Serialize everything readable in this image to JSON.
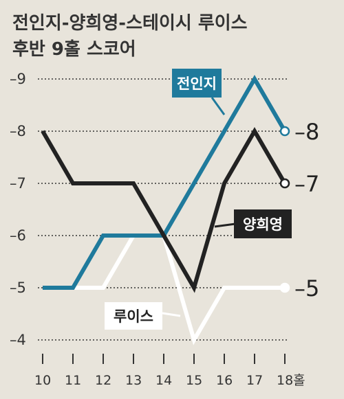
{
  "chart_data": {
    "type": "line",
    "title_lines": [
      "전인지-양희영-스테이시 루이스",
      "후반 9홀 스코어"
    ],
    "x_ticks": [
      "10",
      "11",
      "12",
      "13",
      "14",
      "15",
      "16",
      "17",
      "18홀"
    ],
    "y_ticks": [
      "-9",
      "-8",
      "-7",
      "-6",
      "-5",
      "-4"
    ],
    "ylim": [
      -4,
      -9
    ],
    "grid": "horizontal dotted",
    "series": [
      {
        "name": "전인지",
        "color": "#1f7a9c",
        "label_bg": "#1f7a9c",
        "label_fg": "#ffffff",
        "values": [
          -5,
          -5,
          -6,
          -6,
          -6,
          -7,
          -8,
          -9,
          -8
        ],
        "end_label": "-8"
      },
      {
        "name": "양희영",
        "color": "#222222",
        "label_bg": "#222222",
        "label_fg": "#ffffff",
        "values": [
          -8,
          -7,
          -7,
          -7,
          -6,
          -5,
          -7,
          -8,
          -7
        ],
        "end_label": "-7"
      },
      {
        "name": "루이스",
        "color": "#ffffff",
        "label_bg": "#ffffff",
        "label_fg": "#222222",
        "values": [
          -5,
          -5,
          -5,
          -6,
          -6,
          -4,
          -5,
          -5,
          -5
        ],
        "end_label": "-5"
      }
    ]
  }
}
